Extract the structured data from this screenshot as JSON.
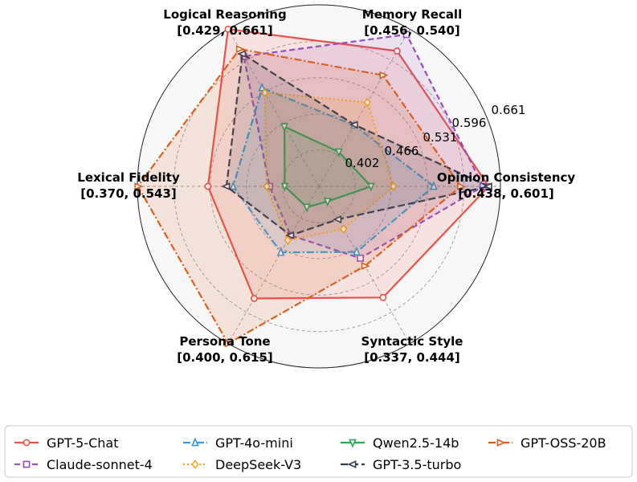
{
  "chart_data": {
    "type": "radar",
    "axes": [
      {
        "name": "Opinion Consistency",
        "range": "[0.438, 0.601]"
      },
      {
        "name": "Memory Recall",
        "range": "[0.456, 0.540]"
      },
      {
        "name": "Logical Reasoning",
        "range": "[0.429, 0.661]"
      },
      {
        "name": "Lexical Fidelity",
        "range": "[0.370, 0.543]"
      },
      {
        "name": "Persona Tone",
        "range": "[0.400, 0.615]"
      },
      {
        "name": "Syntactic Style",
        "range": "[0.337, 0.444]"
      }
    ],
    "ring_labels": [
      "0.402",
      "0.466",
      "0.531",
      "0.596",
      "0.661"
    ],
    "ring_values": [
      0.402,
      0.466,
      0.531,
      0.596,
      0.661
    ],
    "r_range": [
      0.337,
      0.661
    ],
    "grid": true,
    "legend_position": "bottom",
    "series": [
      {
        "name": "GPT-5-Chat",
        "color": "#e8524a",
        "dash": "solid",
        "marker": "circle",
        "values": [
          0.64,
          0.616,
          0.661,
          0.535,
          0.568,
          0.566
        ]
      },
      {
        "name": "Claude-sonnet-4",
        "color": "#9b4dbb",
        "dash": "dashed",
        "marker": "square",
        "values": [
          0.63,
          0.65,
          0.605,
          0.425,
          0.438,
          0.485
        ]
      },
      {
        "name": "GPT-4o-mini",
        "color": "#3a9ad9",
        "dash": "dashdot",
        "marker": "triangle-up",
        "values": [
          0.542,
          0.463,
          0.54,
          0.49,
          0.473,
          0.472
        ]
      },
      {
        "name": "DeepSeek-V3",
        "color": "#f5a623",
        "dash": "dotted",
        "marker": "diamond",
        "values": [
          0.47,
          0.51,
          0.53,
          0.43,
          0.448,
          0.425
        ]
      },
      {
        "name": "Qwen2.5-14b",
        "color": "#2aa85a",
        "dash": "solid",
        "marker": "triangle-down",
        "values": [
          0.43,
          0.408,
          0.46,
          0.398,
          0.38,
          0.368
        ]
      },
      {
        "name": "GPT-3.5-turbo",
        "color": "#2e3e55",
        "dash": "longdash",
        "marker": "triangle-left",
        "values": [
          0.64,
          0.464,
          0.61,
          0.502,
          0.438,
          0.405
        ]
      },
      {
        "name": "GPT-OSS-20B",
        "color": "#d95f1e",
        "dash": "dashdot",
        "marker": "triangle-right",
        "values": [
          0.59,
          0.566,
          0.62,
          0.66,
          0.661,
          0.501
        ]
      }
    ]
  }
}
